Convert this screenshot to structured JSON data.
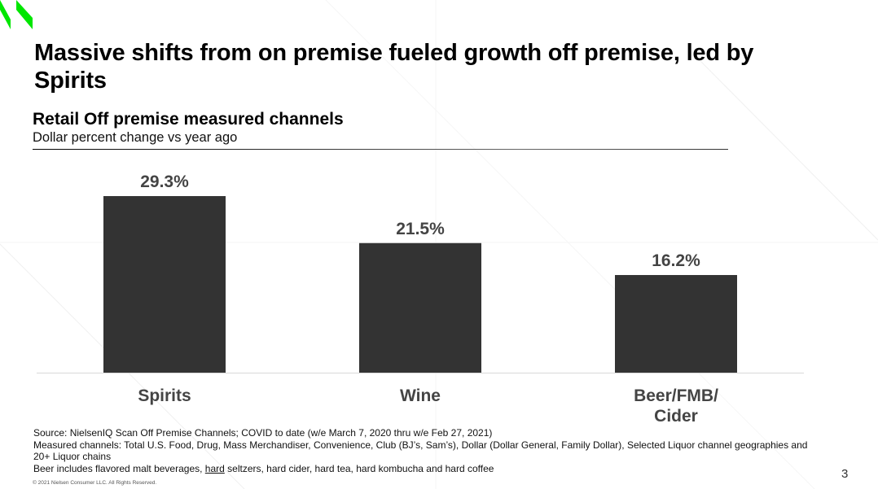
{
  "brand": {
    "logo_color": "#00e600"
  },
  "slide": {
    "title": "Massive shifts from on premise fueled growth off premise, led by Spirits",
    "page_number": "3",
    "copyright": "© 2021 Nielsen Consumer LLC. All Rights Reserved."
  },
  "footnotes": {
    "line1": "Source: NielsenIQ  Scan Off Premise Channels; COVID to date (w/e March 7, 2020 thru w/e Feb 27, 2021)",
    "line2": "Measured channels: Total U.S. Food, Drug, Mass Merchandiser, Convenience, Club (BJ’s, Sam’s), Dollar (Dollar General, Family Dollar), Selected Liquor channel geographies and 20+ Liquor chains",
    "line3_prefix": "Beer includes flavored malt beverages, ",
    "line3_underlined": "hard",
    "line3_suffix": " seltzers, hard cider, hard tea, hard kombucha and hard coffee"
  },
  "chart_data": {
    "type": "bar",
    "title": "Retail Off premise measured channels",
    "subtitle": "Dollar percent change vs year ago",
    "categories": [
      "Spirits",
      "Wine",
      "Beer/FMB/ Cider"
    ],
    "category_lines": [
      [
        "Spirits"
      ],
      [
        "Wine"
      ],
      [
        "Beer/FMB/",
        "Cider"
      ]
    ],
    "values": [
      29.3,
      21.5,
      16.2
    ],
    "data_labels": [
      "29.3%",
      "21.5%",
      "16.2%"
    ],
    "xlabel": "",
    "ylabel": "",
    "ylim": [
      0,
      29.3
    ],
    "grid": false,
    "legend": "none",
    "bar_color": "#333333",
    "label_color": "#444444"
  }
}
